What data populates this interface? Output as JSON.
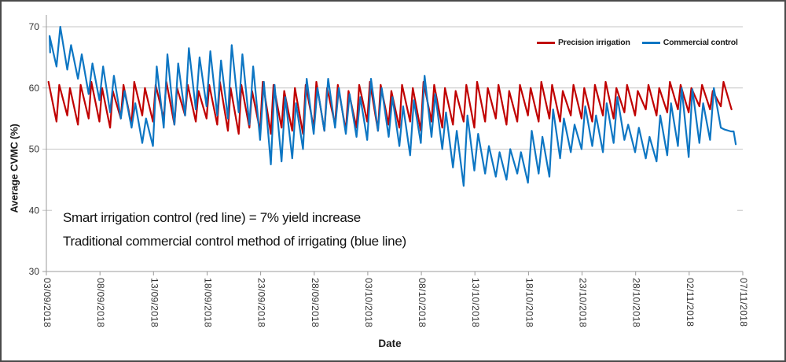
{
  "chart_data": {
    "type": "line",
    "title": "",
    "xlabel": "Date",
    "ylabel": "Average CVMC (%)",
    "ylim": [
      30,
      70
    ],
    "yticks": [
      30,
      40,
      50,
      60,
      70
    ],
    "xlim_days": [
      0,
      65
    ],
    "xtick_days": [
      0,
      5,
      10,
      15,
      20,
      25,
      30,
      35,
      40,
      45,
      50,
      55,
      60,
      65
    ],
    "xtick_labels": [
      "03/09/2018",
      "08/09/2018",
      "13/09/2018",
      "18/09/2018",
      "23/09/2018",
      "28/09/2018",
      "03/10/2018",
      "08/10/2018",
      "13/10/2018",
      "18/10/2018",
      "23/10/2018",
      "28/10/2018",
      "02/11/2018",
      "07/11/2018"
    ],
    "grid": "horizontal-major",
    "legend_position": "top-right-inside",
    "cycle_encoding": "each cycle = [day_index_from_03/09/2018, peak_value_%, trough_value_%]; irrigation spike occurs at day+peak_phase, decay trough at day+trough_phase; tail = explicit [day,value] end points",
    "series": [
      {
        "name": "Precision irrigation",
        "color": "#c00000",
        "peak_phase": 0.2,
        "trough_phase": 0.95,
        "cycles": [
          [
            0,
            61,
            54.5
          ],
          [
            1,
            60.5,
            55.5
          ],
          [
            2,
            60,
            54
          ],
          [
            3,
            60.5,
            55
          ],
          [
            4,
            61,
            54.5
          ],
          [
            5,
            60,
            53.5
          ],
          [
            6,
            59.5,
            55
          ],
          [
            7,
            60.5,
            54
          ],
          [
            8,
            61,
            55.5
          ],
          [
            9,
            60,
            54.5
          ],
          [
            10,
            60.5,
            55
          ],
          [
            11,
            61,
            54
          ],
          [
            12,
            60,
            55.5
          ],
          [
            13,
            60.5,
            54.5
          ],
          [
            14,
            59.5,
            55
          ],
          [
            15,
            60.5,
            54
          ],
          [
            16,
            61,
            53
          ],
          [
            17,
            60,
            52.5
          ],
          [
            18,
            60.5,
            53.5
          ],
          [
            19,
            59.5,
            53
          ],
          [
            20,
            61,
            52.5
          ],
          [
            21,
            60.5,
            53.5
          ],
          [
            22,
            59.5,
            53
          ],
          [
            23,
            60,
            52.5
          ],
          [
            24,
            60.5,
            53.5
          ],
          [
            25,
            61,
            53
          ],
          [
            26,
            60,
            54
          ],
          [
            27,
            60.5,
            53
          ],
          [
            28,
            59.5,
            53.5
          ],
          [
            29,
            60.5,
            54.5
          ],
          [
            30,
            61,
            53
          ],
          [
            31,
            60.5,
            54
          ],
          [
            32,
            59.5,
            53.5
          ],
          [
            33,
            60.5,
            54.5
          ],
          [
            34,
            60,
            53
          ],
          [
            35,
            61,
            54.5
          ],
          [
            36,
            60.5,
            53.5
          ],
          [
            37,
            60,
            54
          ],
          [
            38,
            59.5,
            54.5
          ],
          [
            39,
            60.5,
            53.5
          ],
          [
            40,
            61,
            54.5
          ],
          [
            41,
            60,
            55
          ],
          [
            42,
            60.5,
            54
          ],
          [
            43,
            59.5,
            54.5
          ],
          [
            44,
            60.5,
            55.5
          ],
          [
            45,
            60,
            54.5
          ],
          [
            46,
            61,
            55
          ],
          [
            47,
            60.5,
            54.5
          ],
          [
            48,
            59.5,
            55.5
          ],
          [
            49,
            60.5,
            55
          ],
          [
            50,
            60,
            54.5
          ],
          [
            51,
            60.5,
            55.5
          ],
          [
            52,
            61,
            55
          ],
          [
            53,
            60,
            56
          ],
          [
            54,
            60.5,
            55.5
          ],
          [
            55,
            59.5,
            56.5
          ],
          [
            56,
            60.5,
            55.5
          ],
          [
            57,
            60,
            56
          ],
          [
            58,
            61,
            56.5
          ],
          [
            59,
            60.5,
            56
          ],
          [
            60,
            60,
            57
          ],
          [
            61,
            60.5,
            56.5
          ],
          [
            62,
            59.5,
            57
          ],
          [
            63,
            61,
            56.5
          ]
        ],
        "tail": []
      },
      {
        "name": "Commercial control",
        "color": "#0d76c3",
        "peak_phase": 0.3,
        "trough_phase": 0.95,
        "start": [
          0.35,
          65.8
        ],
        "cycles": [
          [
            0,
            68.5,
            63.5
          ],
          [
            1,
            70,
            63
          ],
          [
            2,
            67,
            61.5
          ],
          [
            3,
            65.5,
            59
          ],
          [
            4,
            64,
            58
          ],
          [
            5,
            63.5,
            56
          ],
          [
            6,
            62,
            55
          ],
          [
            7,
            59.5,
            53.5
          ],
          [
            8,
            57.5,
            51
          ],
          [
            9,
            55,
            50.5
          ],
          [
            10,
            63.5,
            53.5
          ],
          [
            11,
            65.5,
            54
          ],
          [
            12,
            64,
            55.5
          ],
          [
            13,
            66.5,
            56.5
          ],
          [
            14,
            65,
            57
          ],
          [
            15,
            66,
            55.5
          ],
          [
            16,
            64.5,
            55
          ],
          [
            17,
            67,
            56
          ],
          [
            18,
            65.5,
            54
          ],
          [
            19,
            63.5,
            51.5
          ],
          [
            20,
            61,
            47.5
          ],
          [
            21,
            60.5,
            48
          ],
          [
            22,
            58.5,
            48.5
          ],
          [
            23,
            57.5,
            50
          ],
          [
            24,
            61.5,
            52.5
          ],
          [
            25,
            60,
            53
          ],
          [
            26,
            61.5,
            53.5
          ],
          [
            27,
            60,
            52.5
          ],
          [
            28,
            59,
            52
          ],
          [
            29,
            58.5,
            51.5
          ],
          [
            30,
            61.5,
            53
          ],
          [
            31,
            60,
            52
          ],
          [
            32,
            58.5,
            50.5
          ],
          [
            33,
            57,
            49
          ],
          [
            34,
            58,
            51
          ],
          [
            35,
            62,
            52
          ],
          [
            36,
            59,
            50
          ],
          [
            37,
            56,
            47
          ],
          [
            38,
            53,
            44
          ],
          [
            39,
            55.5,
            46.5
          ],
          [
            40,
            52.5,
            46
          ],
          [
            41,
            50.5,
            45.5
          ],
          [
            42,
            49.5,
            45
          ],
          [
            43,
            50,
            46
          ],
          [
            44,
            49.5,
            44.5
          ],
          [
            45,
            53,
            46
          ],
          [
            46,
            52,
            45.5
          ],
          [
            47,
            56.5,
            48.5
          ],
          [
            48,
            55,
            49.5
          ],
          [
            49,
            54,
            50
          ],
          [
            50,
            57,
            50.5
          ],
          [
            51,
            55.5,
            49.5
          ],
          [
            52,
            57.5,
            51
          ],
          [
            53,
            58.5,
            51.5
          ],
          [
            54,
            54,
            49.5
          ],
          [
            55,
            53.5,
            48.5
          ],
          [
            56,
            52,
            48
          ],
          [
            57,
            55.5,
            49
          ],
          [
            58,
            57.5,
            50.5
          ],
          [
            59,
            60,
            48.7
          ],
          [
            60,
            59.8,
            51
          ],
          [
            61,
            57.5,
            51.5
          ],
          [
            62,
            60,
            53.5
          ]
        ],
        "tail": [
          [
            63.3,
            53.2
          ],
          [
            63.9,
            52.9
          ],
          [
            64.15,
            52.9
          ],
          [
            64.35,
            50.8
          ]
        ]
      }
    ],
    "annotations": [
      "Smart irrigation control (red line) = 7% yield increase",
      "Traditional commercial control method of irrigating (blue line)"
    ]
  },
  "axes": {
    "y_title": "Average CVMC (%)",
    "x_title": "Date"
  },
  "legend": {
    "items": [
      {
        "label": "Precision irrigation",
        "color": "#c00000"
      },
      {
        "label": "Commercial control",
        "color": "#0d76c3"
      }
    ]
  },
  "annotation": {
    "line1": "Smart irrigation control (red line) = 7% yield increase",
    "line2": "Traditional commercial control method of irrigating (blue line)"
  },
  "colors": {
    "precision_red": "#c00000",
    "commercial_blue": "#0d76c3",
    "gridline": "#c6c6c6",
    "axis": "#9b9b9b",
    "frame_border": "#4a4a4a"
  }
}
